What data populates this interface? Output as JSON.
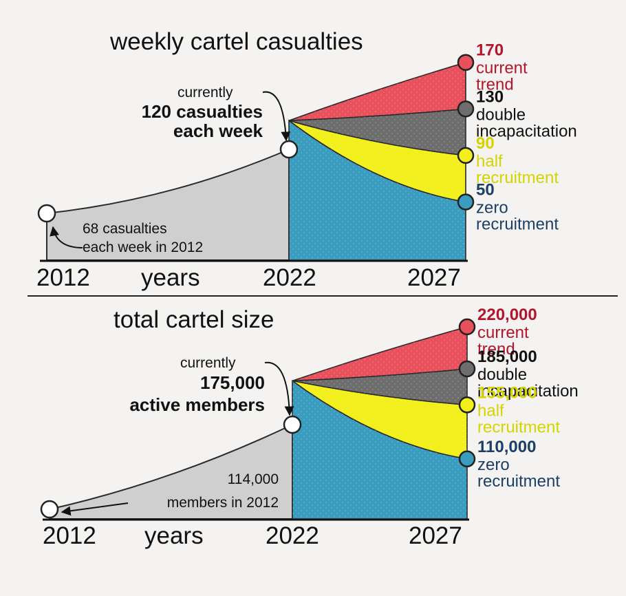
{
  "colors": {
    "past_fill": "#cfcfcf",
    "current_trend": "#e8505b",
    "double_incapacitation": "#6e6e6e",
    "half_recruitment": "#f2ef1a",
    "zero_recruitment": "#3a9cbf",
    "label_red": "#b3162a",
    "label_black": "#111111",
    "label_yellow": "#d4d400",
    "label_blue": "#1c3f66"
  },
  "chart_data": [
    {
      "type": "area",
      "title": "weekly cartel casualties",
      "xlabel": "years",
      "x_ticks": [
        "2012",
        "2022",
        "2027"
      ],
      "history": [
        {
          "x": 2012,
          "y": 68
        },
        {
          "x": 2022,
          "y": 120
        }
      ],
      "series": [
        {
          "name": "current trend",
          "value_label": "170",
          "line1": "current",
          "line2": "trend",
          "color_key": "current_trend",
          "label_color_key": "label_red",
          "end_value": 170
        },
        {
          "name": "double incapacitation",
          "value_label": "130",
          "line1": "double",
          "line2": "incapacitation",
          "color_key": "double_incapacitation",
          "label_color_key": "label_black",
          "end_value": 130
        },
        {
          "name": "half recruitment",
          "value_label": "90",
          "line1": "half",
          "line2": "recruitment",
          "color_key": "half_recruitment",
          "label_color_key": "label_yellow",
          "end_value": 90
        },
        {
          "name": "zero recruitment",
          "value_label": "50",
          "line1": "zero",
          "line2": "recruitment",
          "color_key": "zero_recruitment",
          "label_color_key": "label_blue",
          "end_value": 50
        }
      ],
      "annotations": {
        "current_line1": "currently",
        "current_line2": "120 casualties",
        "current_line3": "each week",
        "start_line1": "68 casualties",
        "start_line2": "each week in 2012"
      }
    },
    {
      "type": "area",
      "title": "total cartel size",
      "xlabel": "years",
      "x_ticks": [
        "2012",
        "2022",
        "2027"
      ],
      "history": [
        {
          "x": 2012,
          "y": 114000
        },
        {
          "x": 2022,
          "y": 175000
        }
      ],
      "series": [
        {
          "name": "current trend",
          "value_label": "220,000",
          "line1": "current",
          "line2": "trend",
          "color_key": "current_trend",
          "label_color_key": "label_red",
          "end_value": 220000
        },
        {
          "name": "double incapacitation",
          "value_label": "185,000",
          "line1": "double",
          "line2": "incapacitation",
          "color_key": "double_incapacitation",
          "label_color_key": "label_black",
          "end_value": 185000
        },
        {
          "name": "half recruitment",
          "value_label": "155,000",
          "line1": "half",
          "line2": "recruitment",
          "color_key": "half_recruitment",
          "label_color_key": "label_yellow",
          "end_value": 155000
        },
        {
          "name": "zero recruitment",
          "value_label": "110,000",
          "line1": "zero",
          "line2": "recruitment",
          "color_key": "zero_recruitment",
          "label_color_key": "label_blue",
          "end_value": 110000
        }
      ],
      "annotations": {
        "current_line1": "currently",
        "current_line2": "175,000",
        "current_line3": "active members",
        "start_line1": "114,000",
        "start_line2": "members in 2012"
      }
    }
  ]
}
